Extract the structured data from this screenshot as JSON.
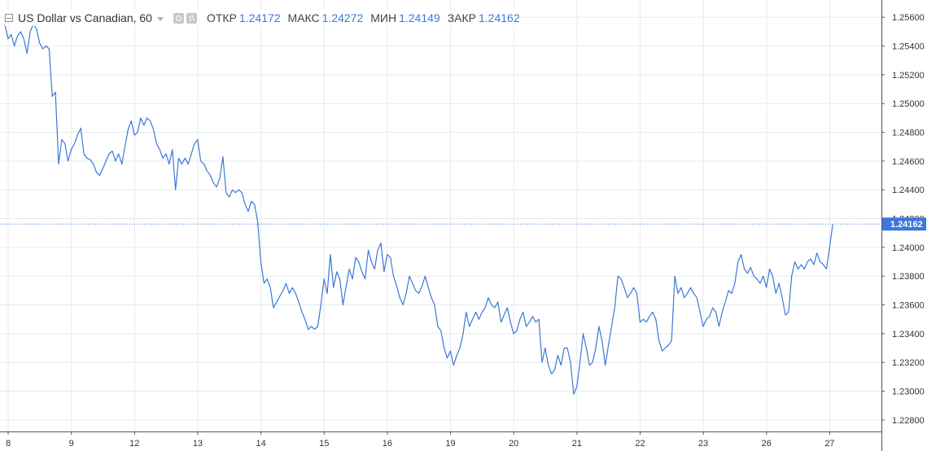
{
  "legend": {
    "symbol": "US Dollar vs Canadian, 60",
    "open_label": "ОТКР",
    "open_value": "1.24172",
    "high_label": "МАКС",
    "high_value": "1.24272",
    "low_label": "МИН",
    "low_value": "1.24149",
    "close_label": "ЗАКР",
    "close_value": "1.24162"
  },
  "colors": {
    "line": "#3c78d8",
    "grid": "#e6eaee",
    "last_price_badge": "#3c78d8",
    "text": "#333333"
  },
  "chart_data": {
    "type": "line",
    "title": "",
    "xlabel": "",
    "ylabel": "",
    "ylim": [
      1.2272,
      1.2572
    ],
    "grid": true,
    "y_ticks": [
      "1.25600",
      "1.25400",
      "1.25200",
      "1.25000",
      "1.24800",
      "1.24600",
      "1.24400",
      "1.24200",
      "1.24000",
      "1.23800",
      "1.23600",
      "1.23400",
      "1.23200",
      "1.23000",
      "1.22800"
    ],
    "x_ticks": [
      {
        "label": "8",
        "t": 0
      },
      {
        "label": "9",
        "t": 20
      },
      {
        "label": "12",
        "t": 40
      },
      {
        "label": "13",
        "t": 60
      },
      {
        "label": "14",
        "t": 80
      },
      {
        "label": "15",
        "t": 100
      },
      {
        "label": "16",
        "t": 120
      },
      {
        "label": "19",
        "t": 140
      },
      {
        "label": "20",
        "t": 160
      },
      {
        "label": "21",
        "t": 180
      },
      {
        "label": "22",
        "t": 200
      },
      {
        "label": "23",
        "t": 220
      },
      {
        "label": "26",
        "t": 240
      },
      {
        "label": "27",
        "t": 260
      }
    ],
    "last_value": 1.24162,
    "last_label": "1.24162",
    "series": [
      {
        "values": [
          1.2555,
          1.2545,
          1.2548,
          1.254,
          1.2547,
          1.255,
          1.2545,
          1.2535,
          1.255,
          1.2555,
          1.2552,
          1.2542,
          1.2538,
          1.254,
          1.2538,
          1.2505,
          1.2508,
          1.2458,
          1.2475,
          1.2472,
          1.246,
          1.2468,
          1.2472,
          1.2478,
          1.2483,
          1.2465,
          1.2462,
          1.2461,
          1.2458,
          1.2452,
          1.245,
          1.2455,
          1.246,
          1.2465,
          1.2467,
          1.246,
          1.2465,
          1.2458,
          1.247,
          1.2482,
          1.2488,
          1.2478,
          1.248,
          1.249,
          1.2485,
          1.249,
          1.2488,
          1.2482,
          1.2472,
          1.2468,
          1.2462,
          1.2465,
          1.2458,
          1.2468,
          1.244,
          1.2462,
          1.2458,
          1.2462,
          1.2458,
          1.2465,
          1.2472,
          1.2475,
          1.246,
          1.2458,
          1.2453,
          1.245,
          1.2445,
          1.2442,
          1.2448,
          1.2463,
          1.2438,
          1.2435,
          1.244,
          1.2438,
          1.244,
          1.2438,
          1.243,
          1.2425,
          1.2432,
          1.243,
          1.2418,
          1.239,
          1.2375,
          1.2378,
          1.2372,
          1.2358,
          1.2362,
          1.2366,
          1.237,
          1.2375,
          1.2368,
          1.2372,
          1.2368,
          1.2362,
          1.2355,
          1.235,
          1.2343,
          1.2345,
          1.2343,
          1.2345,
          1.236,
          1.2378,
          1.2368,
          1.2395,
          1.2372,
          1.2383,
          1.2378,
          1.236,
          1.2373,
          1.2385,
          1.2378,
          1.2393,
          1.239,
          1.2383,
          1.2378,
          1.2398,
          1.239,
          1.2385,
          1.2398,
          1.2403,
          1.2383,
          1.2395,
          1.2393,
          1.238,
          1.2373,
          1.2365,
          1.236,
          1.2368,
          1.238,
          1.2375,
          1.237,
          1.2368,
          1.2373,
          1.238,
          1.2372,
          1.2365,
          1.236,
          1.2345,
          1.2342,
          1.233,
          1.2323,
          1.2328,
          1.2318,
          1.2325,
          1.233,
          1.234,
          1.2355,
          1.2345,
          1.235,
          1.2355,
          1.235,
          1.2355,
          1.2358,
          1.2365,
          1.236,
          1.2358,
          1.2362,
          1.2348,
          1.2353,
          1.2358,
          1.2348,
          1.234,
          1.2342,
          1.235,
          1.2355,
          1.2345,
          1.2348,
          1.2352,
          1.2348,
          1.235,
          1.232,
          1.233,
          1.2318,
          1.2312,
          1.2315,
          1.2325,
          1.2318,
          1.233,
          1.233,
          1.232,
          1.2298,
          1.2303,
          1.232,
          1.234,
          1.233,
          1.2318,
          1.232,
          1.233,
          1.2345,
          1.2335,
          1.2318,
          1.2332,
          1.2345,
          1.2358,
          1.238,
          1.2378,
          1.2372,
          1.2365,
          1.2368,
          1.2372,
          1.2368,
          1.2348,
          1.235,
          1.2348,
          1.2352,
          1.2355,
          1.235,
          1.2335,
          1.2328,
          1.233,
          1.2332,
          1.2335,
          1.238,
          1.2368,
          1.2372,
          1.2365,
          1.2368,
          1.2372,
          1.2368,
          1.2365,
          1.2355,
          1.2345,
          1.235,
          1.2352,
          1.2358,
          1.2355,
          1.2345,
          1.2355,
          1.2362,
          1.237,
          1.2368,
          1.2375,
          1.239,
          1.2395,
          1.2385,
          1.2382,
          1.2386,
          1.238,
          1.2378,
          1.2375,
          1.238,
          1.2372,
          1.2385,
          1.238,
          1.2368,
          1.2375,
          1.2365,
          1.2353,
          1.2355,
          1.238,
          1.239,
          1.2385,
          1.2388,
          1.2385,
          1.239,
          1.2392,
          1.2388,
          1.2396,
          1.239,
          1.2388,
          1.2385,
          1.24,
          1.2416
        ]
      }
    ]
  }
}
